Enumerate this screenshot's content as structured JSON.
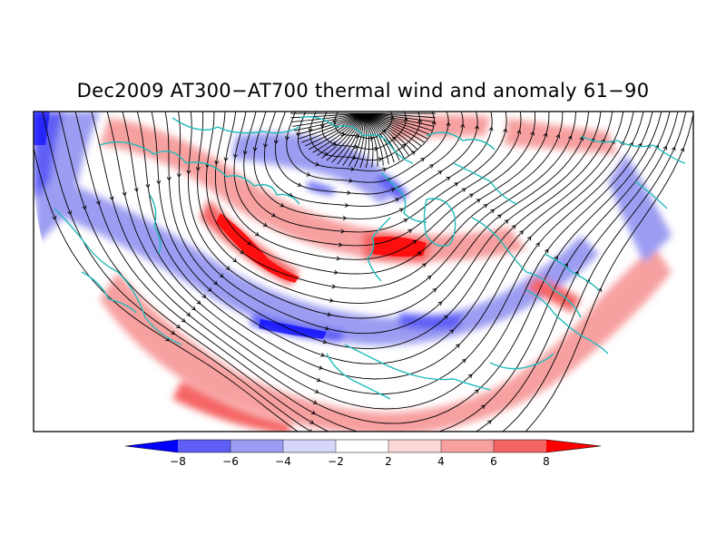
{
  "title": "Dec2009 AT300−AT700 thermal wind and anomaly 61−90",
  "colorbar": {
    "labels": [
      "−8",
      "−6",
      "−4",
      "−2",
      "2",
      "4",
      "6",
      "8"
    ],
    "colors": [
      "#0000ff",
      "#5f5ff5",
      "#9c9cf2",
      "#d6d6fa",
      "#ffffff",
      "#fcd7d7",
      "#f7a0a0",
      "#f56565",
      "#ff0000"
    ]
  },
  "map": {
    "projection": "north polar stereographic (half disc)",
    "coastline_color": "#22bbbb",
    "streamline_color": "#000000"
  }
}
